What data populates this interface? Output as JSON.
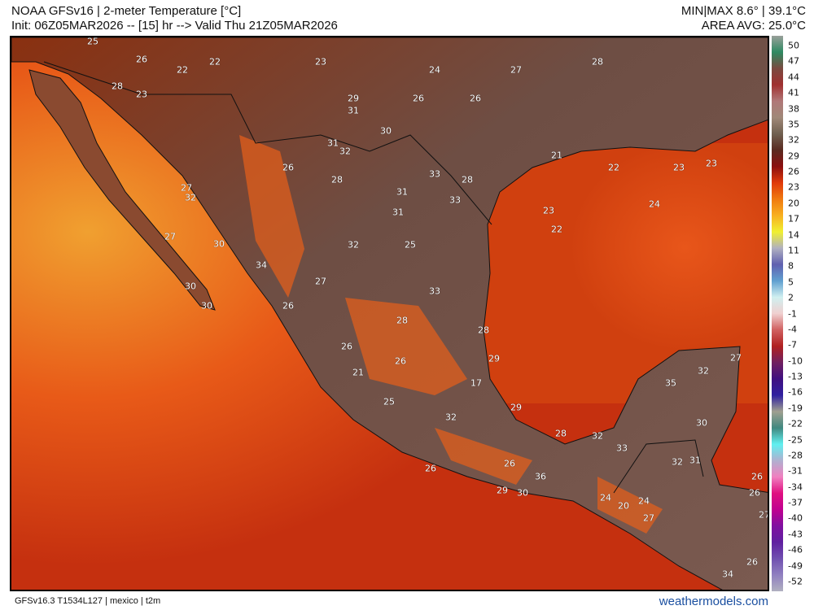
{
  "header": {
    "title": "NOAA GFSv16 | 2-meter Temperature [°C]",
    "init": "Init: 06Z05MAR2026 -- [15] hr --> Valid Thu 21Z05MAR2026",
    "minmax": "MIN|MAX 8.6° | 39.1°C",
    "avg": "AREA AVG: 25.0°C"
  },
  "footer": {
    "model": "GFSv16.3 T1534L127 | mexico | t2m",
    "brand": "weathermodels.com"
  },
  "colorbar": {
    "ticks": [
      "50",
      "47",
      "44",
      "41",
      "38",
      "35",
      "32",
      "29",
      "26",
      "23",
      "20",
      "17",
      "14",
      "11",
      "8",
      "5",
      "2",
      "-1",
      "-4",
      "-7",
      "-10",
      "-13",
      "-16",
      "-19",
      "-22",
      "-25",
      "-28",
      "-31",
      "-34",
      "-37",
      "-40",
      "-43",
      "-46",
      "-49",
      "-52"
    ],
    "colors": [
      "#9aa09a",
      "#2e8a62",
      "#7a4a40",
      "#a03030",
      "#b07878",
      "#a08878",
      "#706050",
      "#5a2a20",
      "#8b0f0f",
      "#e03a0a",
      "#f07a10",
      "#f8b020",
      "#f0f030",
      "#b0b0c0",
      "#6060b0",
      "#60a0d0",
      "#d0f0f0",
      "#f0d0d0",
      "#d06060",
      "#b02020",
      "#702060",
      "#401080",
      "#3020a0",
      "#a0a090",
      "#408880",
      "#60f0f0",
      "#b0b0d0",
      "#f080c0",
      "#e01080",
      "#c00090",
      "#8010a0",
      "#6020a0",
      "#7050b0",
      "#9080c0",
      "#b0b0c0"
    ]
  },
  "map": {
    "colors": {
      "ocean_warm": "#c5300f",
      "ocean_hot": "#e8561a",
      "land": "#6e4e44",
      "land_hot": "#f07020",
      "coast": "#111111"
    },
    "station_values": [
      "25",
      "26",
      "22",
      "23",
      "26",
      "24",
      "26",
      "27",
      "28",
      "29",
      "31",
      "31",
      "30",
      "28",
      "26",
      "27",
      "32",
      "27",
      "30",
      "34",
      "30",
      "30",
      "26",
      "32",
      "31",
      "33",
      "33",
      "28",
      "31",
      "32",
      "25",
      "27",
      "33",
      "28",
      "29",
      "26",
      "28",
      "21",
      "25",
      "26",
      "17",
      "32",
      "29",
      "28",
      "26",
      "26",
      "36",
      "29",
      "30",
      "32",
      "33",
      "20",
      "24",
      "27",
      "35",
      "32",
      "27",
      "30",
      "32",
      "31",
      "26",
      "26",
      "27",
      "34",
      "24",
      "23",
      "23",
      "22",
      "21",
      "23",
      "24",
      "22",
      "22",
      "23",
      "26",
      "28"
    ]
  }
}
